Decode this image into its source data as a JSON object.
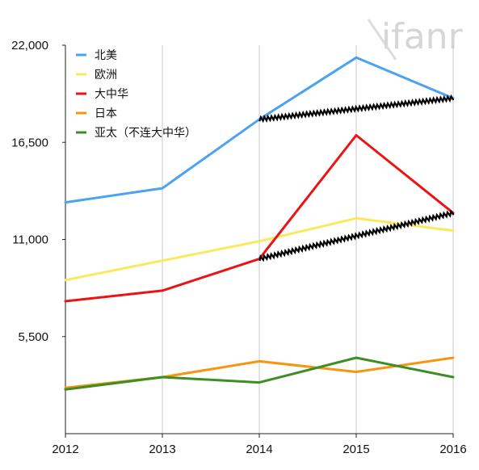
{
  "watermark": "ifanr",
  "chart_data": {
    "type": "line",
    "title": "",
    "xlabel": "",
    "ylabel": "",
    "x": [
      "2012",
      "2013",
      "2014",
      "2015",
      "2016"
    ],
    "ylim": [
      0,
      22000
    ],
    "yticks": [
      5500,
      11000,
      16500,
      22000
    ],
    "ytick_labels": [
      "5,500",
      "11,000",
      "16,500",
      "22,000"
    ],
    "grid": "vertical",
    "legend_position": "top-left",
    "series": [
      {
        "name": "北美",
        "color": "#4aa3f0",
        "values": [
          13100,
          13900,
          17800,
          21300,
          19000
        ]
      },
      {
        "name": "欧洲",
        "color": "#fde85a",
        "values": [
          8700,
          9800,
          10900,
          12200,
          11500
        ]
      },
      {
        "name": "大中华",
        "color": "#ec1313",
        "values": [
          7500,
          8100,
          9900,
          16900,
          12500
        ]
      },
      {
        "name": "日本",
        "color": "#f7950f",
        "values": [
          2600,
          3200,
          4100,
          3500,
          4300
        ]
      },
      {
        "name": "亚太（不连大中华）",
        "color": "#3d8e23",
        "values": [
          2500,
          3200,
          2900,
          4300,
          3200
        ]
      }
    ],
    "trend_lines": [
      {
        "color": "#000000",
        "from": {
          "x": "2014",
          "y": 17800
        },
        "to": {
          "x": "2016",
          "y": 19000
        }
      },
      {
        "color": "#000000",
        "from": {
          "x": "2014",
          "y": 9900
        },
        "to": {
          "x": "2016",
          "y": 12500
        }
      }
    ]
  }
}
